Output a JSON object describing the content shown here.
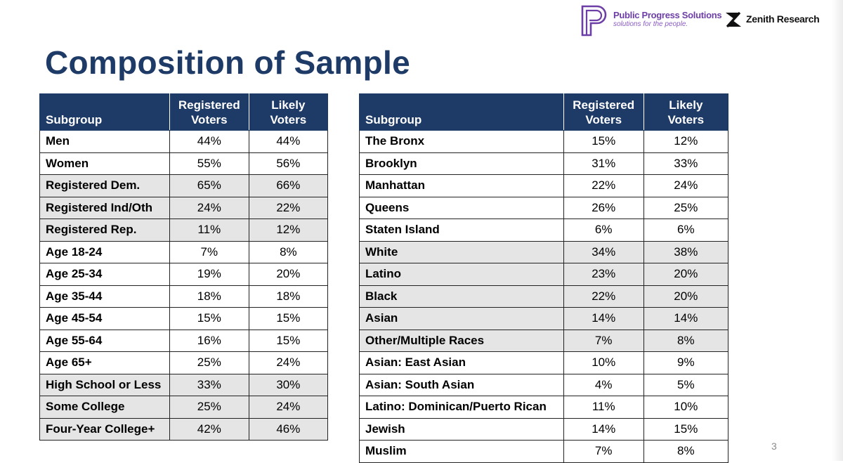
{
  "header": {
    "title": "Composition of Sample",
    "page_number": "3"
  },
  "logos": {
    "public_progress": {
      "name": "Public Progress Solutions",
      "tagline": "solutions for the people.",
      "mark_icon": "pps-p-monogram-icon",
      "color": "#6d3fa6"
    },
    "zenith": {
      "name": "Zenith Research",
      "mark_icon": "zenith-z-mark-icon",
      "color": "#111111"
    }
  },
  "colors": {
    "header_bg": "#1e3a66",
    "title": "#1e3a66",
    "row_shade": "#e5e5e5"
  },
  "table_left": {
    "headers": [
      "Subgroup",
      "Registered Voters",
      "Likely Voters"
    ],
    "rows": [
      {
        "subgroup": "Men",
        "registered": "44%",
        "likely": "44%",
        "shaded": false
      },
      {
        "subgroup": "Women",
        "registered": "55%",
        "likely": "56%",
        "shaded": false
      },
      {
        "subgroup": "Registered Dem.",
        "registered": "65%",
        "likely": "66%",
        "shaded": true
      },
      {
        "subgroup": "Registered Ind/Oth",
        "registered": "24%",
        "likely": "22%",
        "shaded": true
      },
      {
        "subgroup": "Registered Rep.",
        "registered": "11%",
        "likely": "12%",
        "shaded": true
      },
      {
        "subgroup": "Age 18-24",
        "registered": "7%",
        "likely": "8%",
        "shaded": false
      },
      {
        "subgroup": "Age 25-34",
        "registered": "19%",
        "likely": "20%",
        "shaded": false
      },
      {
        "subgroup": "Age 35-44",
        "registered": "18%",
        "likely": "18%",
        "shaded": false
      },
      {
        "subgroup": "Age 45-54",
        "registered": "15%",
        "likely": "15%",
        "shaded": false
      },
      {
        "subgroup": "Age 55-64",
        "registered": "16%",
        "likely": "15%",
        "shaded": false
      },
      {
        "subgroup": "Age 65+",
        "registered": "25%",
        "likely": "24%",
        "shaded": false
      },
      {
        "subgroup": "High School or Less",
        "registered": "33%",
        "likely": "30%",
        "shaded": true
      },
      {
        "subgroup": "Some College",
        "registered": "25%",
        "likely": "24%",
        "shaded": true
      },
      {
        "subgroup": "Four-Year College+",
        "registered": "42%",
        "likely": "46%",
        "shaded": true
      }
    ]
  },
  "table_right": {
    "headers": [
      "Subgroup",
      "Registered Voters",
      "Likely Voters"
    ],
    "rows": [
      {
        "subgroup": "The Bronx",
        "registered": "15%",
        "likely": "12%",
        "shaded": false
      },
      {
        "subgroup": "Brooklyn",
        "registered": "31%",
        "likely": "33%",
        "shaded": false
      },
      {
        "subgroup": "Manhattan",
        "registered": "22%",
        "likely": "24%",
        "shaded": false
      },
      {
        "subgroup": "Queens",
        "registered": "26%",
        "likely": "25%",
        "shaded": false
      },
      {
        "subgroup": "Staten Island",
        "registered": "6%",
        "likely": "6%",
        "shaded": false
      },
      {
        "subgroup": "White",
        "registered": "34%",
        "likely": "38%",
        "shaded": true
      },
      {
        "subgroup": "Latino",
        "registered": "23%",
        "likely": "20%",
        "shaded": true
      },
      {
        "subgroup": "Black",
        "registered": "22%",
        "likely": "20%",
        "shaded": true
      },
      {
        "subgroup": "Asian",
        "registered": "14%",
        "likely": "14%",
        "shaded": true
      },
      {
        "subgroup": "Other/Multiple Races",
        "registered": "7%",
        "likely": "8%",
        "shaded": true
      },
      {
        "subgroup": "Asian: East Asian",
        "registered": "10%",
        "likely": "9%",
        "shaded": false
      },
      {
        "subgroup": "Asian: South Asian",
        "registered": "4%",
        "likely": "5%",
        "shaded": false
      },
      {
        "subgroup": "Latino: Dominican/Puerto Rican",
        "registered": "11%",
        "likely": "10%",
        "shaded": false
      },
      {
        "subgroup": "Jewish",
        "registered": "14%",
        "likely": "15%",
        "shaded": false
      },
      {
        "subgroup": "Muslim",
        "registered": "7%",
        "likely": "8%",
        "shaded": false
      }
    ]
  }
}
